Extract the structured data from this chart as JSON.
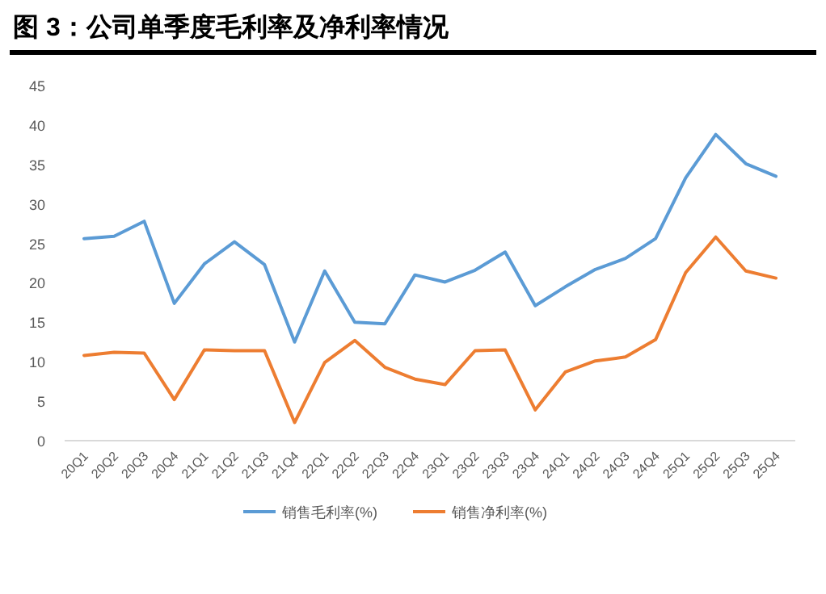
{
  "chart_data": {
    "type": "line",
    "title": "图 3：公司单季度毛利率及净利率情况",
    "categories": [
      "20Q1",
      "20Q2",
      "20Q3",
      "20Q4",
      "21Q1",
      "21Q2",
      "21Q3",
      "21Q4",
      "22Q1",
      "22Q2",
      "22Q3",
      "22Q4",
      "23Q1",
      "23Q2",
      "23Q3",
      "23Q4",
      "24Q1",
      "24Q2",
      "24Q3",
      "24Q4",
      "25Q1",
      "25Q2",
      "25Q3",
      "25Q4"
    ],
    "series": [
      {
        "name": "销售毛利率(%)",
        "color": "#5b9bd5",
        "values": [
          25.6,
          25.9,
          27.8,
          17.4,
          22.4,
          25.2,
          22.3,
          12.5,
          21.5,
          15.0,
          14.8,
          21.0,
          20.1,
          21.6,
          23.9,
          17.1,
          19.5,
          21.7,
          23.1,
          25.6,
          33.3,
          38.8,
          35.1,
          33.5
        ]
      },
      {
        "name": "销售净利率(%)",
        "color": "#ed7d31",
        "values": [
          10.8,
          11.2,
          11.1,
          5.2,
          11.5,
          11.4,
          11.4,
          2.3,
          9.9,
          12.7,
          9.3,
          7.8,
          7.1,
          11.4,
          11.5,
          3.9,
          8.7,
          10.1,
          10.6,
          12.8,
          21.3,
          25.8,
          21.5,
          20.6
        ]
      }
    ],
    "ylim": [
      0,
      45
    ],
    "yticks": [
      0,
      5,
      10,
      15,
      20,
      25,
      30,
      35,
      40,
      45
    ],
    "grid": false,
    "legend": "bottom",
    "marker": "none",
    "line_style": "solid"
  }
}
